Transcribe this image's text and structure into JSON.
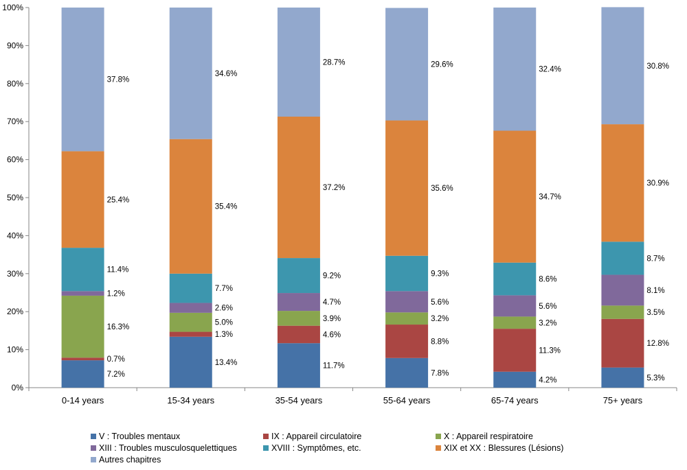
{
  "chart_data": {
    "type": "bar",
    "stacked": true,
    "percent_stacked": true,
    "categories": [
      "0-14 years",
      "15-34 years",
      "35-54 years",
      "55-64 years",
      "65-74 years",
      "75+ years"
    ],
    "series": [
      {
        "name": "V : Troubles mentaux",
        "color": "#4572A7",
        "values": [
          7.2,
          13.4,
          11.7,
          7.8,
          4.2,
          5.3
        ],
        "labels": [
          "7.2%",
          "13.4%",
          "11.7%",
          "7.8%",
          "4.2%",
          "5.3%"
        ]
      },
      {
        "name": "IX : Appareil circulatoire",
        "color": "#AA4643",
        "values": [
          0.7,
          1.3,
          4.6,
          8.8,
          11.3,
          12.8
        ],
        "labels": [
          "0.7%",
          "1.3%",
          "4.6%",
          "8.8%",
          "11.3%",
          "12.8%"
        ]
      },
      {
        "name": "X : Appareil respiratoire",
        "color": "#89A54E",
        "values": [
          16.3,
          5.0,
          3.9,
          3.2,
          3.2,
          3.5
        ],
        "labels": [
          "16.3%",
          "5.0%",
          "3.9%",
          "3.2%",
          "3.2%",
          "3.5%"
        ]
      },
      {
        "name": "XIII : Troubles musculosquelettiques",
        "color": "#80699B",
        "values": [
          1.2,
          2.6,
          4.7,
          5.6,
          5.6,
          8.1
        ],
        "labels": [
          "1.2%",
          "2.6%",
          "4.7%",
          "5.6%",
          "5.6%",
          "8.1%"
        ]
      },
      {
        "name": "XVIII : Symptômes, etc.",
        "color": "#3D96AE",
        "values": [
          11.4,
          7.7,
          9.2,
          9.3,
          8.6,
          8.7
        ],
        "labels": [
          "11.4%",
          "7.7%",
          "9.2%",
          "9.3%",
          "8.6%",
          "8.7%"
        ]
      },
      {
        "name": "XIX et XX : Blessures (Lésions)",
        "color": "#DB843D",
        "values": [
          25.4,
          35.4,
          37.2,
          35.6,
          34.7,
          30.9
        ],
        "labels": [
          "25.4%",
          "35.4%",
          "37.2%",
          "35.6%",
          "34.7%",
          "30.9%"
        ]
      },
      {
        "name": "Autres chapitres",
        "color": "#92A8CD",
        "values": [
          37.8,
          34.6,
          28.7,
          29.6,
          32.4,
          30.8
        ],
        "labels": [
          "37.8%",
          "34.6%",
          "28.7%",
          "29.6%",
          "32.4%",
          "30.8%"
        ]
      }
    ],
    "y_ticks": [
      "0%",
      "10%",
      "20%",
      "30%",
      "40%",
      "50%",
      "60%",
      "70%",
      "80%",
      "90%",
      "100%"
    ],
    "ylim": [
      0,
      100
    ],
    "grid": false,
    "legend_position": "bottom",
    "title": "",
    "xlabel": "",
    "ylabel": ""
  }
}
